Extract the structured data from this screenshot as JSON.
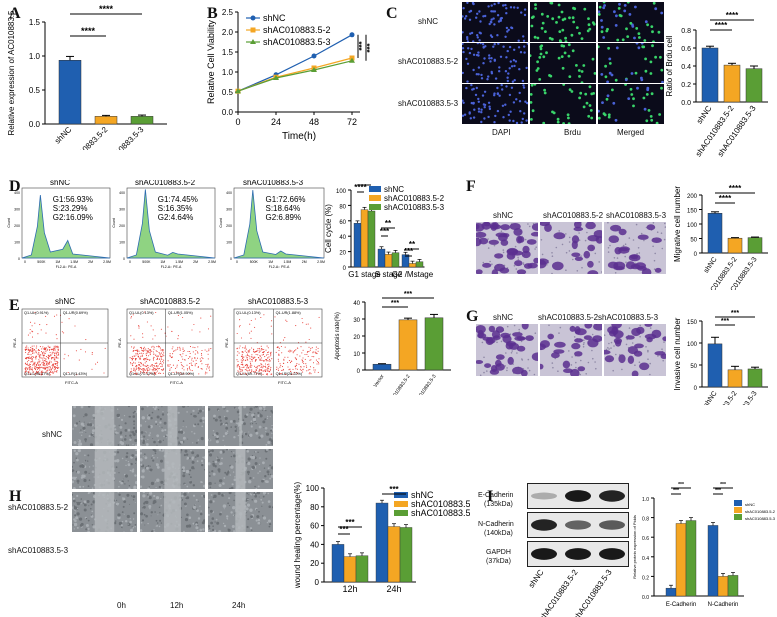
{
  "figure": {
    "panel_labels": [
      "A",
      "B",
      "C",
      "D",
      "E",
      "F",
      "G",
      "H",
      "I"
    ],
    "colors": {
      "shNC": "#1f5fb0",
      "sh2": "#f4a623",
      "sh3": "#5a9e35"
    },
    "groups": [
      "shNC",
      "shAC010883.5-2",
      "shAC010883.5-3"
    ]
  },
  "chart_data": [
    {
      "id": "A",
      "type": "bar",
      "title": "",
      "ylabel": "Relative expression of AC010883.5",
      "categories": [
        "shNC",
        "shAC010883.5-2",
        "shAC010883.5-3"
      ],
      "values": [
        1.0,
        0.12,
        0.12
      ],
      "errors": [
        0.06,
        0.015,
        0.02
      ],
      "ylim": [
        0,
        1.6
      ],
      "yticks": [
        "0.0",
        "0.5",
        "1.0",
        "1.5"
      ],
      "sig": [
        "****",
        "****"
      ]
    },
    {
      "id": "B",
      "type": "line",
      "ylabel": "Relative Cell Viability",
      "xlabel": "Time(h)",
      "x": [
        0,
        24,
        48,
        72
      ],
      "xticks": [
        "0",
        "24",
        "48",
        "72"
      ],
      "yticks": [
        "0.0",
        "0.5",
        "1.0",
        "1.5",
        "2.0",
        "2.5"
      ],
      "ylim": [
        0,
        2.5
      ],
      "series": [
        {
          "name": "shNC",
          "values": [
            0.52,
            0.93,
            1.4,
            1.93
          ]
        },
        {
          "name": "shAC010883.5-2",
          "values": [
            0.52,
            0.87,
            1.1,
            1.35
          ]
        },
        {
          "name": "shAC010883.5-3",
          "values": [
            0.52,
            0.85,
            1.05,
            1.28
          ]
        }
      ],
      "sig": [
        "***",
        "***"
      ]
    },
    {
      "id": "C",
      "type": "bar",
      "ylabel": "Ratio of Brdu cell",
      "categories": [
        "shNC",
        "shAC010883.5-2",
        "shAC010883.5-3"
      ],
      "values": [
        0.6,
        0.41,
        0.37
      ],
      "errors": [
        0.02,
        0.02,
        0.03
      ],
      "ylim": [
        0,
        0.8
      ],
      "yticks": [
        "0.0",
        "0.2",
        "0.4",
        "0.6",
        "0.8"
      ],
      "sig": [
        "****",
        "****"
      ],
      "row_labels": [
        "shNC",
        "shAC010883.5-2",
        "shAC010883.5-3"
      ],
      "col_labels": [
        "DAPI",
        "Brdu",
        "Merged"
      ]
    },
    {
      "id": "D",
      "type": "bar",
      "ylabel": "Cell cycle (%)",
      "categories": [
        "G1 stage",
        "S stage",
        "G2 /Mstage"
      ],
      "series": [
        {
          "name": "shNC",
          "values": [
            56.9,
            23.3,
            16.1
          ]
        },
        {
          "name": "shAC010883.5-2",
          "values": [
            74.5,
            16.4,
            4.6
          ]
        },
        {
          "name": "shAC010883.5-3",
          "values": [
            72.7,
            18.6,
            6.9
          ]
        }
      ],
      "ylim": [
        0,
        100
      ],
      "yticks": [
        "0",
        "20",
        "40",
        "60",
        "80",
        "100"
      ],
      "sig": [
        "****",
        "****",
        "***",
        "**",
        "***",
        "**"
      ],
      "histograms": [
        {
          "title": "shNC",
          "stats": [
            "G1:56.93%",
            "S:23.29%",
            "G2:16.09%"
          ]
        },
        {
          "title": "shAC010883.5-2",
          "stats": [
            "G1:74.45%",
            "S:16.35%",
            "G2:4.64%"
          ]
        },
        {
          "title": "shAC010883.5-3",
          "stats": [
            "G1:72.66%",
            "S:18.64%",
            "G2:6.89%"
          ]
        }
      ],
      "hist_yticks": [
        "400",
        "300",
        "200",
        "100",
        "0"
      ],
      "hist_xticks": [
        "0",
        "500K",
        "1M",
        "1.5M",
        "2M",
        "2.5M"
      ],
      "hist_xlabel": "FL2-A:: PE-A",
      "hist_ylabel": "Count"
    },
    {
      "id": "E",
      "type": "bar",
      "ylabel": "Apoptosis rate(%)",
      "categories": [
        "Vector",
        "shAC010883.5-2",
        "shAC010883.5-3"
      ],
      "values": [
        3.4,
        29.5,
        30.7
      ],
      "errors": [
        0.3,
        1.0,
        2.0
      ],
      "ylim": [
        0,
        40
      ],
      "yticks": [
        "0",
        "10",
        "20",
        "30",
        "40"
      ],
      "sig": [
        "***",
        "***"
      ],
      "scatters": [
        {
          "title": "shNC",
          "quads": [
            "Q1-UL(0.91%)",
            "Q1-UR(0.69%)",
            "Q1-LL(95.47%)",
            "Q1-LR(3.43%)"
          ]
        },
        {
          "title": "shAC010883.5-2",
          "quads": [
            "Q1-UL(0.13%)",
            "Q1-UR(1.05%)",
            "Q1-LL(71.12%)",
            "Q1-LR(28.90%)"
          ]
        },
        {
          "title": "shAC010883.5-3",
          "quads": [
            "Q1-UL(0.13%)",
            "Q1-UR(1.88%)",
            "Q1-LL(69.77%)",
            "Q1-LR(28.22%)"
          ]
        }
      ],
      "scatter_xlabel": "FITC-A",
      "scatter_ylabel": "PE-A"
    },
    {
      "id": "F",
      "type": "bar",
      "ylabel": "Migrative cell number",
      "categories": [
        "shNC",
        "shAC010883.5-2",
        "shAC010883.5-3"
      ],
      "values": [
        137,
        51,
        53
      ],
      "errors": [
        5,
        2,
        2
      ],
      "ylim": [
        0,
        200
      ],
      "yticks": [
        "0",
        "50",
        "100",
        "150",
        "200"
      ],
      "sig": [
        "****",
        "****"
      ],
      "image_labels": [
        "shNC",
        "shAC010883.5-2",
        "shAC010883.5-3"
      ]
    },
    {
      "id": "G",
      "type": "bar",
      "ylabel": "Invasive cell number",
      "categories": [
        "shNC",
        "shAC010883.5-2",
        "shAC010883.5-3"
      ],
      "values": [
        98,
        39,
        41
      ],
      "errors": [
        15,
        8,
        4
      ],
      "ylim": [
        0,
        150
      ],
      "yticks": [
        "0",
        "50",
        "100",
        "150"
      ],
      "sig": [
        "***",
        "***"
      ],
      "image_labels": [
        "shNC",
        "shAC010883.5-2",
        "shAC010883.5-3"
      ]
    },
    {
      "id": "H",
      "type": "bar",
      "ylabel": "wound healing percentage(%)",
      "categories": [
        "12h",
        "24h"
      ],
      "series": [
        {
          "name": "shNC",
          "values": [
            40,
            84
          ]
        },
        {
          "name": "shAC010883.5-2",
          "values": [
            27,
            59
          ]
        },
        {
          "name": "shAC010883.5-3",
          "values": [
            28,
            58
          ]
        }
      ],
      "ylim": [
        0,
        100
      ],
      "yticks": [
        "0",
        "20",
        "40",
        "60",
        "80",
        "100"
      ],
      "sig": [
        "***",
        "***",
        "***"
      ],
      "row_labels": [
        "shNC",
        "shAC010883.5-2",
        "shAC010883.5-3"
      ],
      "col_labels": [
        "0h",
        "12h",
        "24h"
      ]
    },
    {
      "id": "I",
      "type": "bar",
      "ylabel": "Relative protein expression of Pidds",
      "categories": [
        "E-Cadherin",
        "N-Cadherin"
      ],
      "series": [
        {
          "name": "shNC",
          "values": [
            0.08,
            0.72
          ]
        },
        {
          "name": "shAC010883.5-2",
          "values": [
            0.74,
            0.2
          ]
        },
        {
          "name": "shAC010883.5-3",
          "values": [
            0.77,
            0.21
          ]
        }
      ],
      "ylim": [
        0,
        1.0
      ],
      "yticks": [
        "0.0",
        "0.2",
        "0.4",
        "0.6",
        "0.8",
        "1.0"
      ],
      "sig": [
        "***",
        "***",
        "***",
        "***"
      ],
      "blot_labels": [
        "E-Cadherin\n(135kDa)",
        "N-Cadherin\n(140kDa)",
        "GAPDH\n(37kDa)"
      ],
      "lane_labels": [
        "shNC",
        "shAC010883.5-2",
        "shAC010883.5-3"
      ],
      "legend": [
        "shNC",
        "shAC010883.5-2",
        "shAC010883.5-3"
      ]
    }
  ],
  "blot": {
    "e_cad_label": "E-Cadherin",
    "e_cad_kda": "(135kDa)",
    "n_cad_label": "N-Cadherin",
    "n_cad_kda": "(140kDa)",
    "gapdh_label": "GAPDH",
    "gapdh_kda": "(37kDa)"
  }
}
